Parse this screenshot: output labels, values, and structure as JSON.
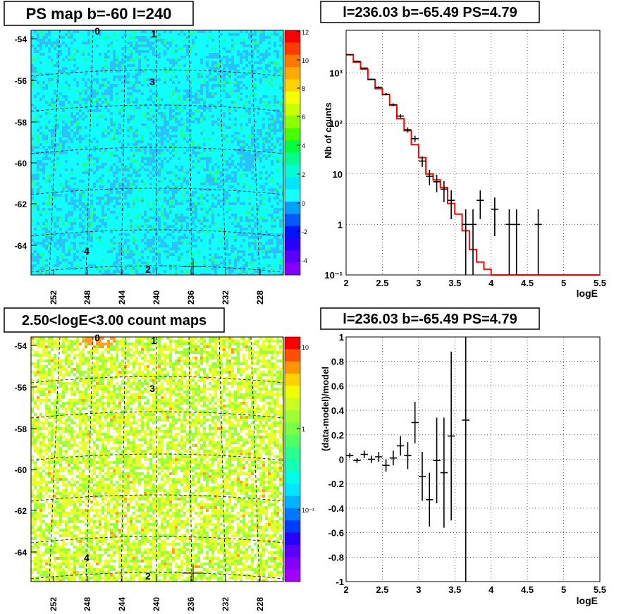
{
  "panels": {
    "ps_map": {
      "title": "PS map b=-60 l=240",
      "y_ticks": [
        "-54",
        "-56",
        "-58",
        "-60",
        "-62",
        "-64"
      ],
      "x_ticks": [
        "252",
        "248",
        "244",
        "240",
        "236",
        "232",
        "228"
      ],
      "colorbar_ticks": [
        "12",
        "10",
        "8",
        "6",
        "4",
        "2",
        "0",
        "-2",
        "-4"
      ],
      "source_labels": [
        "0",
        "1",
        "3",
        "4",
        "2"
      ],
      "colors": {
        "base": "#11ffff",
        "low": "#28c3ff",
        "high": "#21ff8c"
      }
    },
    "count_map": {
      "title": "2.50<logE<3.00 count maps",
      "y_ticks": [
        "-54",
        "-56",
        "-58",
        "-60",
        "-62",
        "-64"
      ],
      "x_ticks": [
        "252",
        "248",
        "244",
        "240",
        "236",
        "232",
        "228"
      ],
      "colorbar_ticks": [
        "10",
        "1",
        "10⁻¹"
      ],
      "source_labels": [
        "0",
        "1",
        "3",
        "4",
        "2"
      ],
      "colors": {
        "yellow": "#e8ff2c",
        "green": "#9cff3c",
        "white": "#ffffff",
        "orange": "#ffa020"
      }
    },
    "spectrum": {
      "title": "l=236.03 b=-65.49 PS=4.79",
      "ylabel": "Nb of counts",
      "xlabel": "logE",
      "y_ticks": [
        "10³",
        "10²",
        "10",
        "1",
        "10⁻¹"
      ],
      "x_ticks": [
        "2",
        "2.5",
        "3",
        "3.5",
        "4",
        "4.5",
        "5",
        "5.5"
      ],
      "model_color": "#ff0000"
    },
    "residual": {
      "title": "l=236.03 b=-65.49 PS=4.79",
      "ylabel": "(data-model)/model",
      "xlabel": "logE",
      "y_ticks": [
        "1",
        "0.8",
        "0.6",
        "0.4",
        "0.2",
        "0",
        "-0.2",
        "-0.4",
        "-0.6",
        "-0.8",
        "-1"
      ],
      "x_ticks": [
        "2",
        "2.5",
        "3",
        "3.5",
        "4",
        "4.5",
        "5",
        "5.5"
      ]
    }
  },
  "chart_data": [
    {
      "type": "heatmap",
      "title": "PS map b=-60 l=240",
      "x_range": [
        256,
        226
      ],
      "y_range": [
        -65.5,
        -53.5
      ],
      "z_range": [
        -5,
        12
      ],
      "sources": [
        {
          "label": "0",
          "lon": 248.5,
          "lat": -53.8
        },
        {
          "label": "1",
          "lon": 240.5,
          "lat": -53.9
        },
        {
          "label": "3",
          "lon": 240.5,
          "lat": -56.2
        },
        {
          "label": "4",
          "lon": 249.0,
          "lat": -64.3
        },
        {
          "label": "2",
          "lon": 240.5,
          "lat": -65.3
        }
      ]
    },
    {
      "type": "heatmap",
      "title": "2.50<logE<3.00 count maps",
      "x_range": [
        256,
        226
      ],
      "y_range": [
        -65.5,
        -53.5
      ],
      "z_range": [
        0.05,
        15
      ],
      "z_scale": "log"
    },
    {
      "type": "line",
      "title": "l=236.03 b=-65.49 PS=4.79",
      "xlabel": "logE",
      "ylabel": "Nb of counts",
      "xlim": [
        2,
        5.5
      ],
      "ylim": [
        0.1,
        7000
      ],
      "y_scale": "log",
      "grid": true,
      "series": [
        {
          "name": "data",
          "x": [
            2.05,
            2.15,
            2.25,
            2.35,
            2.45,
            2.55,
            2.65,
            2.75,
            2.85,
            2.95,
            3.05,
            3.15,
            3.25,
            3.35,
            3.45,
            3.55,
            3.65,
            3.75,
            3.85,
            3.95,
            4.05,
            4.15,
            4.25,
            4.35,
            4.45,
            4.55,
            4.65
          ],
          "y": [
            2300,
            1700,
            1250,
            750,
            520,
            380,
            235,
            140,
            75,
            50,
            18,
            9,
            7,
            5,
            3,
            0,
            1,
            1,
            3,
            0,
            2,
            0,
            1,
            1,
            0,
            0,
            1
          ]
        },
        {
          "name": "model",
          "x": [
            2.0,
            2.1,
            2.2,
            2.3,
            2.4,
            2.5,
            2.6,
            2.7,
            2.8,
            2.9,
            3.0,
            3.1,
            3.2,
            3.3,
            3.4,
            3.5,
            3.6,
            3.7,
            3.8,
            3.9,
            4.0,
            4.1,
            4.2,
            4.3,
            4.4,
            4.5,
            4.6,
            4.7,
            4.8,
            4.9,
            5.0,
            5.1,
            5.2,
            5.3,
            5.4
          ],
          "y": [
            2300,
            1650,
            1200,
            740,
            490,
            375,
            230,
            125,
            72,
            38,
            21,
            10,
            7.6,
            5.4,
            2.6,
            1.6,
            0.75,
            0.32,
            0.18,
            0.13,
            0.1,
            0.1,
            0.1,
            0.1,
            0.1,
            0.1,
            0.1,
            0.1,
            0.1,
            0.1,
            0.1,
            0.1,
            0.1,
            0.1,
            0.1
          ]
        }
      ]
    },
    {
      "type": "scatter",
      "title": "l=236.03 b=-65.49 PS=4.79",
      "xlabel": "logE",
      "ylabel": "(data-model)/model",
      "xlim": [
        2,
        5.5
      ],
      "ylim": [
        -1,
        1
      ],
      "grid": true,
      "series": [
        {
          "name": "residuals",
          "x": [
            2.05,
            2.15,
            2.25,
            2.35,
            2.45,
            2.55,
            2.65,
            2.75,
            2.85,
            2.95,
            3.05,
            3.15,
            3.25,
            3.35,
            3.45,
            3.65
          ],
          "y": [
            0.03,
            -0.01,
            0.04,
            0.0,
            0.02,
            -0.05,
            0.01,
            0.11,
            0.03,
            0.3,
            -0.14,
            -0.33,
            -0.01,
            -0.11,
            0.19,
            0.32
          ],
          "err": [
            0.02,
            0.02,
            0.03,
            0.03,
            0.04,
            0.05,
            0.06,
            0.08,
            0.11,
            0.17,
            0.2,
            0.22,
            0.35,
            0.45,
            0.69,
            1.5
          ]
        }
      ]
    }
  ]
}
